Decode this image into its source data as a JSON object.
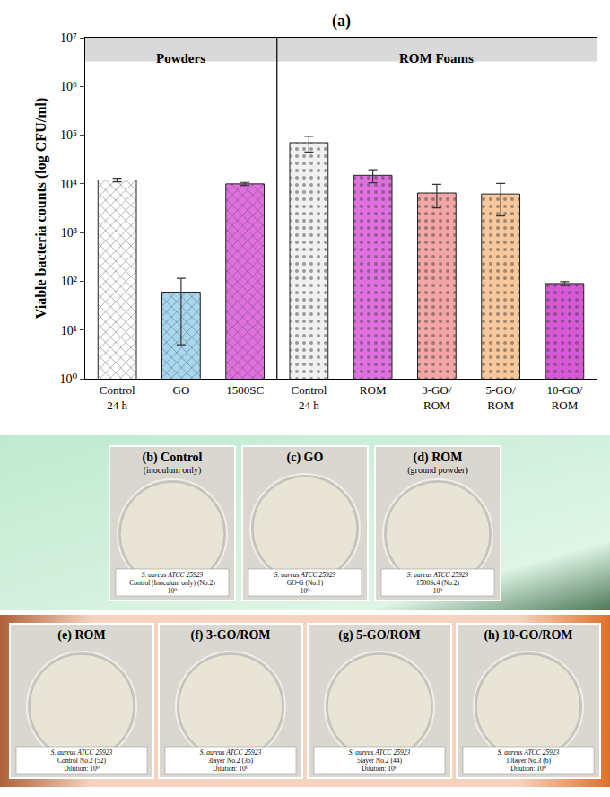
{
  "chart_data": {
    "type": "bar",
    "panel": "(a)",
    "y_label": "Viable bacteria counts (log CFU/ml)",
    "log": "y",
    "grid": false,
    "ylim": [
      1,
      10000000
    ],
    "yticks": [
      {
        "value": 1,
        "label": "10⁰"
      },
      {
        "value": 10,
        "label": "10¹"
      },
      {
        "value": 100,
        "label": "10²"
      },
      {
        "value": 1000,
        "label": "10³"
      },
      {
        "value": 10000,
        "label": "10⁴"
      },
      {
        "value": 100000,
        "label": "10⁵"
      },
      {
        "value": 1000000,
        "label": "10⁶"
      },
      {
        "value": 10000000,
        "label": "10⁷"
      }
    ],
    "groups": [
      {
        "name": "Powders",
        "categories": [
          "Control 24 h",
          "GO",
          "1500SC"
        ],
        "values": [
          12000,
          60,
          10000
        ],
        "errors": [
          1000,
          55,
          700
        ],
        "colors": [
          "#ffffff",
          "#a8d8f0",
          "#e070e0"
        ]
      },
      {
        "name": "ROM Foams",
        "categories": [
          "Control 24 h",
          "ROM",
          "3-GO/ROM",
          "5-GO/ROM",
          "10-GO/ROM"
        ],
        "values": [
          70000,
          15000,
          6500,
          6200,
          90
        ],
        "errors": [
          25000,
          4500,
          3300,
          4000,
          8
        ],
        "colors": [
          "#f0f0f0",
          "#e070e0",
          "#f4a6a6",
          "#f8c89c",
          "#d858d8"
        ]
      }
    ]
  },
  "photos": [
    {
      "row": 1,
      "letter": "(b)",
      "title": "Control",
      "subtitle": "(inoculum only)",
      "label": [
        "S. aureus ATCC 25923",
        "Control (Inoculum only) (No.2)",
        "10⁰"
      ]
    },
    {
      "row": 1,
      "letter": "(c)",
      "title": "GO",
      "subtitle": null,
      "label": [
        "S. aureus ATCC 25923",
        "GO-G (No.1)",
        "10⁰"
      ]
    },
    {
      "row": 1,
      "letter": "(d)",
      "title": "ROM",
      "subtitle": "(ground powder)",
      "label": [
        "S. aureus ATCC 25923",
        "1500Sc4 (No.2)",
        "10⁰"
      ]
    },
    {
      "row": 2,
      "letter": "(e)",
      "title": "ROM",
      "subtitle": null,
      "label": [
        "S. aureus ATCC 25923",
        "Control No.2 (52)",
        "Dilution: 10⁰"
      ]
    },
    {
      "row": 2,
      "letter": "(f)",
      "title": "3-GO/ROM",
      "subtitle": null,
      "label": [
        "S. aureus ATCC 25923",
        "3layer No.2 (36)",
        "Dilution: 10⁰"
      ]
    },
    {
      "row": 2,
      "letter": "(g)",
      "title": "5-GO/ROM",
      "subtitle": null,
      "label": [
        "S. aureus ATCC 25923",
        "5layer No.2 (44)",
        "Dilution: 10⁰"
      ]
    },
    {
      "row": 2,
      "letter": "(h)",
      "title": "10-GO/ROM",
      "subtitle": null,
      "label": [
        "S. aureus ATCC 25923",
        "10layer No.3 (6)",
        "Dilution: 10⁰"
      ]
    }
  ]
}
